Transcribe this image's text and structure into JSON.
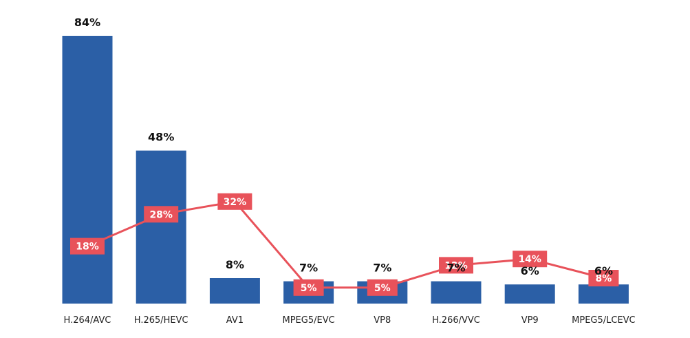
{
  "chart_data": {
    "type": "bar",
    "categories": [
      "H.264/AVC",
      "H.265/HEVC",
      "AV1",
      "MPEG5/EVC",
      "VP8",
      "H.266/VVC",
      "VP9",
      "MPEG5/LCEVC"
    ],
    "series": [
      {
        "type": "bar",
        "values": [
          84,
          48,
          8,
          7,
          7,
          7,
          6,
          6
        ],
        "value_labels": [
          "84%",
          "48%",
          "8%",
          "7%",
          "7%",
          "7%",
          "6%",
          "6%"
        ],
        "color": "#2b5fa6"
      },
      {
        "type": "line",
        "values": [
          18,
          28,
          32,
          5,
          5,
          12,
          14,
          8
        ],
        "value_labels": [
          "18%",
          "28%",
          "32%",
          "5%",
          "5%",
          "12%",
          "14%",
          "8%"
        ],
        "color": "#e8525a"
      }
    ],
    "ylim": [
      0,
      84
    ],
    "grid": false,
    "legend": "none",
    "title": "",
    "xlabel": "",
    "ylabel": ""
  }
}
